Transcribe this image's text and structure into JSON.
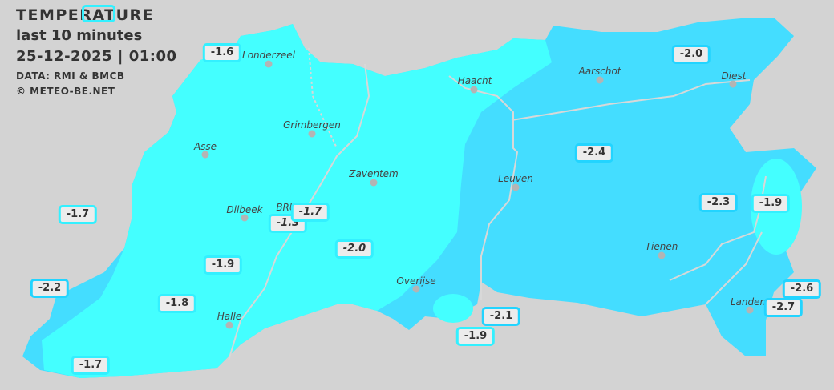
{
  "header": {
    "title": "TEMPERATURE",
    "period": "last 10 minutes",
    "datetime": "25-12-2025  |  01:00",
    "source": "DATA: RMI & BMCB",
    "copyright": "© METEO-BE.NET"
  },
  "colors": {
    "background": "#d3d3d3",
    "zone_warmer": "#44ffff",
    "zone_colder": "#44ddff",
    "label_border": "#33f0ff"
  },
  "cities": [
    "Londerzeel",
    "Haacht",
    "Aarschot",
    "Diest",
    "Grimbergen",
    "Asse",
    "Zaventem",
    "Leuven",
    "Dilbeek",
    "BRU",
    "Tienen",
    "Overijse",
    "Halle",
    "Landen"
  ],
  "readings": [
    "",
    "-1.6",
    "-2.0",
    "-2.4",
    "-1.7",
    "-1.7",
    "-1.3",
    "-2.0",
    "-2.3",
    "-1.9",
    "-1.9",
    "-2.2",
    "-1.8",
    "-2.1",
    "-1.9",
    "-2.6",
    "-2.7",
    "-1.7"
  ]
}
